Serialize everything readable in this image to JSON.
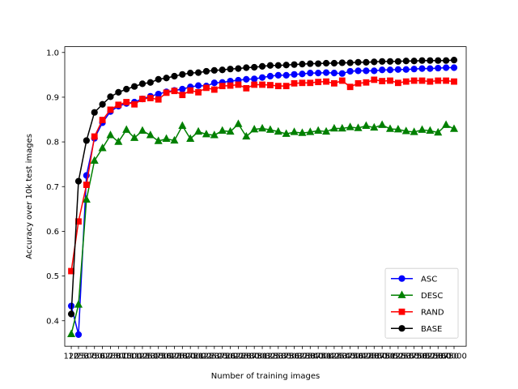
{
  "chart_data": {
    "type": "line",
    "title": "",
    "xlabel": "Number of training images",
    "ylabel": "Accuracy over 10k test images",
    "xlim": [
      -900,
      61900
    ],
    "ylim": [
      0.343,
      1.013
    ],
    "yticks": [
      0.4,
      0.5,
      0.6,
      0.7,
      0.8,
      0.9,
      1.0
    ],
    "ytick_labels": [
      "0.4",
      "0.5",
      "0.6",
      "0.7",
      "0.8",
      "0.9",
      "1.0"
    ],
    "x": [
      120,
      1250,
      2500,
      3750,
      5000,
      6250,
      7500,
      8750,
      10000,
      11250,
      12500,
      13750,
      15000,
      16250,
      17500,
      18750,
      20000,
      21250,
      22500,
      23750,
      25000,
      26250,
      27500,
      28750,
      30000,
      31250,
      32500,
      33750,
      35000,
      36250,
      37500,
      38750,
      40000,
      41250,
      42500,
      43750,
      45000,
      46250,
      47500,
      48750,
      50000,
      51250,
      52500,
      53750,
      55000,
      56250,
      57500,
      58750,
      60000
    ],
    "xtick_labels": [
      "120",
      "1250",
      "2500",
      "3750",
      "5000",
      "6250",
      "7500",
      "8750",
      "10000",
      "11250",
      "12500",
      "13750",
      "15000",
      "16250",
      "17500",
      "18750",
      "20000",
      "21250",
      "22500",
      "23750",
      "25000",
      "26250",
      "27500",
      "28750",
      "30000",
      "31250",
      "32500",
      "33750",
      "35000",
      "36250",
      "37500",
      "38750",
      "40000",
      "41250",
      "42500",
      "43750",
      "45000",
      "46250",
      "47500",
      "48750",
      "50000",
      "51250",
      "52500",
      "53750",
      "55000",
      "56250",
      "57500",
      "58750",
      "60000"
    ],
    "legend_position": "lower-right",
    "grid": false,
    "series": [
      {
        "name": "ASC",
        "color": "#0000ff",
        "marker": "circle",
        "values": [
          0.433,
          0.369,
          0.725,
          0.808,
          0.843,
          0.868,
          0.88,
          0.886,
          0.889,
          0.896,
          0.902,
          0.907,
          0.912,
          0.915,
          0.918,
          0.923,
          0.926,
          0.925,
          0.932,
          0.933,
          0.936,
          0.938,
          0.94,
          0.941,
          0.944,
          0.947,
          0.949,
          0.949,
          0.951,
          0.952,
          0.954,
          0.954,
          0.955,
          0.954,
          0.953,
          0.958,
          0.959,
          0.959,
          0.959,
          0.961,
          0.961,
          0.962,
          0.962,
          0.963,
          0.964,
          0.964,
          0.965,
          0.966,
          0.966
        ]
      },
      {
        "name": "DESC",
        "color": "#008000",
        "marker": "triangle",
        "values": [
          0.37,
          0.436,
          0.671,
          0.758,
          0.786,
          0.815,
          0.8,
          0.827,
          0.809,
          0.825,
          0.815,
          0.802,
          0.807,
          0.803,
          0.836,
          0.807,
          0.823,
          0.817,
          0.815,
          0.825,
          0.823,
          0.84,
          0.812,
          0.828,
          0.83,
          0.827,
          0.823,
          0.818,
          0.822,
          0.82,
          0.822,
          0.825,
          0.823,
          0.83,
          0.83,
          0.833,
          0.831,
          0.836,
          0.832,
          0.838,
          0.829,
          0.828,
          0.824,
          0.822,
          0.827,
          0.825,
          0.821,
          0.838,
          0.829
        ]
      },
      {
        "name": "RAND",
        "color": "#ff0000",
        "marker": "square",
        "values": [
          0.511,
          0.622,
          0.704,
          0.812,
          0.849,
          0.872,
          0.883,
          0.889,
          0.884,
          0.896,
          0.898,
          0.895,
          0.91,
          0.914,
          0.905,
          0.915,
          0.911,
          0.921,
          0.917,
          0.925,
          0.926,
          0.928,
          0.92,
          0.928,
          0.928,
          0.927,
          0.925,
          0.925,
          0.931,
          0.932,
          0.932,
          0.934,
          0.935,
          0.931,
          0.937,
          0.923,
          0.931,
          0.933,
          0.939,
          0.936,
          0.937,
          0.932,
          0.935,
          0.937,
          0.937,
          0.935,
          0.937,
          0.937,
          0.935
        ]
      },
      {
        "name": "BASE",
        "color": "#000000",
        "marker": "circle",
        "values": [
          0.415,
          0.712,
          0.803,
          0.866,
          0.884,
          0.901,
          0.911,
          0.918,
          0.924,
          0.93,
          0.933,
          0.94,
          0.943,
          0.947,
          0.951,
          0.954,
          0.955,
          0.958,
          0.96,
          0.961,
          0.963,
          0.964,
          0.966,
          0.967,
          0.969,
          0.971,
          0.971,
          0.972,
          0.973,
          0.974,
          0.975,
          0.975,
          0.976,
          0.976,
          0.977,
          0.977,
          0.978,
          0.978,
          0.979,
          0.98,
          0.98,
          0.98,
          0.981,
          0.981,
          0.982,
          0.982,
          0.982,
          0.982,
          0.983
        ]
      }
    ]
  }
}
